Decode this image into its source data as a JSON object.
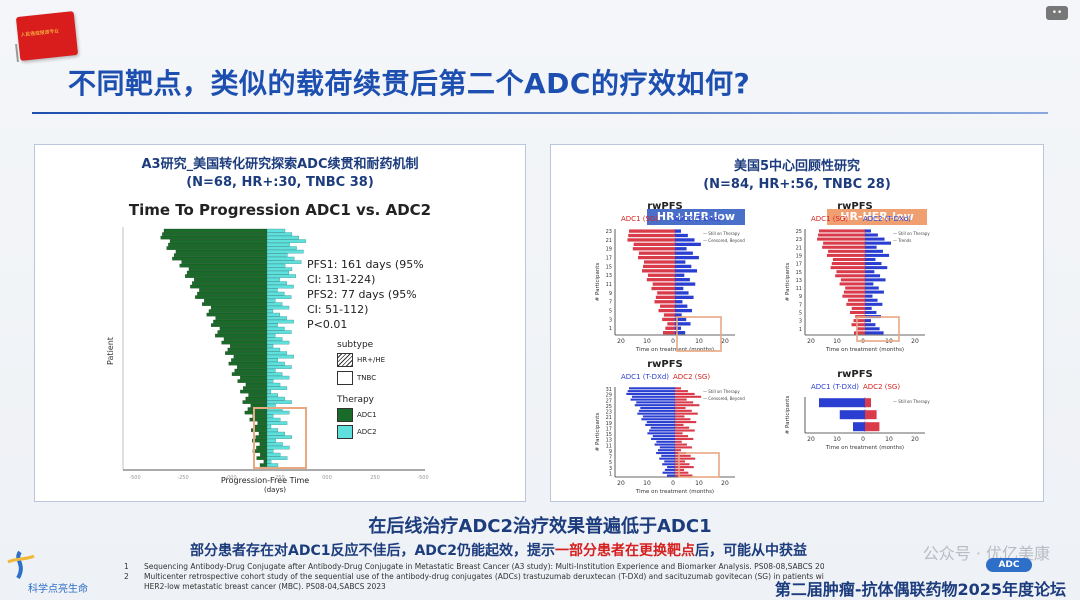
{
  "header": {
    "logo_text": "人民癌症报道专业",
    "title": "不同靶点，类似的载荷续贯后第二个ADC的疗效如何?"
  },
  "left_panel": {
    "heading_line1": "A3研究_美国转化研究探索ADC续贯和耐药机制",
    "heading_line2": "(N=68, HR+:30, TNBC 38)",
    "chart_title": "Time To Progression ADC1 vs. ADC2",
    "stats": [
      "PFS1: 161 days (95%",
      "CI: 131-224)",
      "PFS2: 77 days (95%",
      "CI: 51-112)",
      "P<0.01"
    ],
    "legend": {
      "subtype_title": "subtype",
      "subtype_items": [
        "HR+/HE",
        "TNBC"
      ],
      "therapy_title": "Therapy",
      "therapy_items": [
        "ADC1",
        "ADC2"
      ]
    },
    "ylabel": "Patient",
    "xlabel_line1": "Progression-Free Time",
    "xlabel_line2": "(days)",
    "x_ticks": [
      "-500",
      "-250",
      "-000",
      "-250",
      "000",
      "250",
      "-500"
    ]
  },
  "right_panel": {
    "heading_line1": "美国5中心回顾性研究",
    "heading_line2": "(N=84, HR+:56, TNBC 28)",
    "tag_left": "HR+HER-low",
    "tag_right": "HR-HER-low",
    "plots": [
      {
        "title": "rwPFS",
        "adc1": "ADC1 (SG)",
        "adc2": "ADC2 (T-DXd)",
        "xlabel": "Time on treatment (months)",
        "ylabel": "# Participants",
        "leg": [
          "Still on Therapy",
          "Censored, Beyond"
        ],
        "y_ticks": [
          "23",
          "21",
          "19",
          "17",
          "15",
          "13",
          "11",
          "9",
          "7",
          "5",
          "3",
          "1"
        ],
        "x_ticks": [
          "20",
          "10",
          "0",
          "10",
          "20"
        ]
      },
      {
        "title": "rwPFS",
        "adc1": "ADC1 (SG)",
        "adc2": "ADC2 (T-DXd)",
        "xlabel": "Time on treatment (months)",
        "ylabel": "# Participants",
        "leg": [
          "Still on Therapy",
          "Trends"
        ],
        "y_ticks": [
          "25",
          "23",
          "21",
          "19",
          "17",
          "15",
          "13",
          "11",
          "9",
          "7",
          "5",
          "3",
          "1"
        ],
        "x_ticks": [
          "20",
          "10",
          "0",
          "10",
          "20"
        ]
      },
      {
        "title": "rwPFS",
        "adc1": "ADC1 (T-DXd)",
        "adc2": "ADC2 (SG)",
        "xlabel": "Time on treatment (months)",
        "ylabel": "# Participants",
        "leg": [
          "Still on Therapy",
          "Censored, Beyond"
        ],
        "y_ticks": [
          "31",
          "29",
          "27",
          "25",
          "23",
          "21",
          "19",
          "17",
          "15",
          "13",
          "11",
          "9",
          "7",
          "5",
          "3",
          "1"
        ],
        "x_ticks": [
          "20",
          "10",
          "0",
          "10",
          "20"
        ]
      },
      {
        "title": "rwPFS",
        "adc1": "ADC1 (T-DXd)",
        "adc2": "ADC2 (SG)",
        "xlabel": "Time on treatment (months)",
        "ylabel": "# Participants",
        "leg": [
          "Still on Therapy"
        ],
        "y_ticks": [],
        "x_ticks": [
          "20",
          "10",
          "0",
          "10",
          "20"
        ]
      }
    ]
  },
  "conclusion": "在后线治疗ADC2治疗效果普遍低于ADC1",
  "sub_conclusion": {
    "part1": "部分患者存在对ADC1反应不佳后，ADC2仍能起效，提示",
    "red": "一部分患者在更换靶点",
    "part2": "后，可能从中获益"
  },
  "references": [
    {
      "num": "1",
      "text": "Sequencing Antibody-Drug Conjugate after Antibody-Drug Conjugate in Metastatic Breast Cancer (A3 study): Multi-Institution Experience and Biomarker Analysis. PS08-08,SABCS 2023"
    },
    {
      "num": "2",
      "text": "Multicenter retrospective cohort study of the sequential use of the antibody-drug conjugates (ADCs) trastuzumab deruxtecan (T-DXd) and sacituzumab govitecan (SG) in patients with"
    },
    {
      "num": "",
      "text": "HER2-low metastatic breast cancer (MBC). PS08-04,SABCS 2023"
    }
  ],
  "footer": {
    "logo_text": "科学点亮生命",
    "watermark": "公众号 · 优亿美康",
    "badge": "ADC",
    "forum": "第二届肿瘤-抗体偶联药物2025年度论坛"
  },
  "colors": {
    "title_blue": "#1d4fb0",
    "adc1_green": "#1a6b2a",
    "adc2_cyan": "#5fe0dc",
    "red": "#d61f1f",
    "blue_bar": "#2a3fd1",
    "tag_blue": "#4a6fc9",
    "tag_orange": "#f0a070"
  },
  "chart_data": [
    {
      "type": "bar",
      "title": "Time To Progression ADC1 vs. ADC2",
      "xlabel": "Progression-Free Time (days)",
      "ylabel": "Patient",
      "legend": [
        "ADC1",
        "ADC2"
      ]
    }
  ]
}
